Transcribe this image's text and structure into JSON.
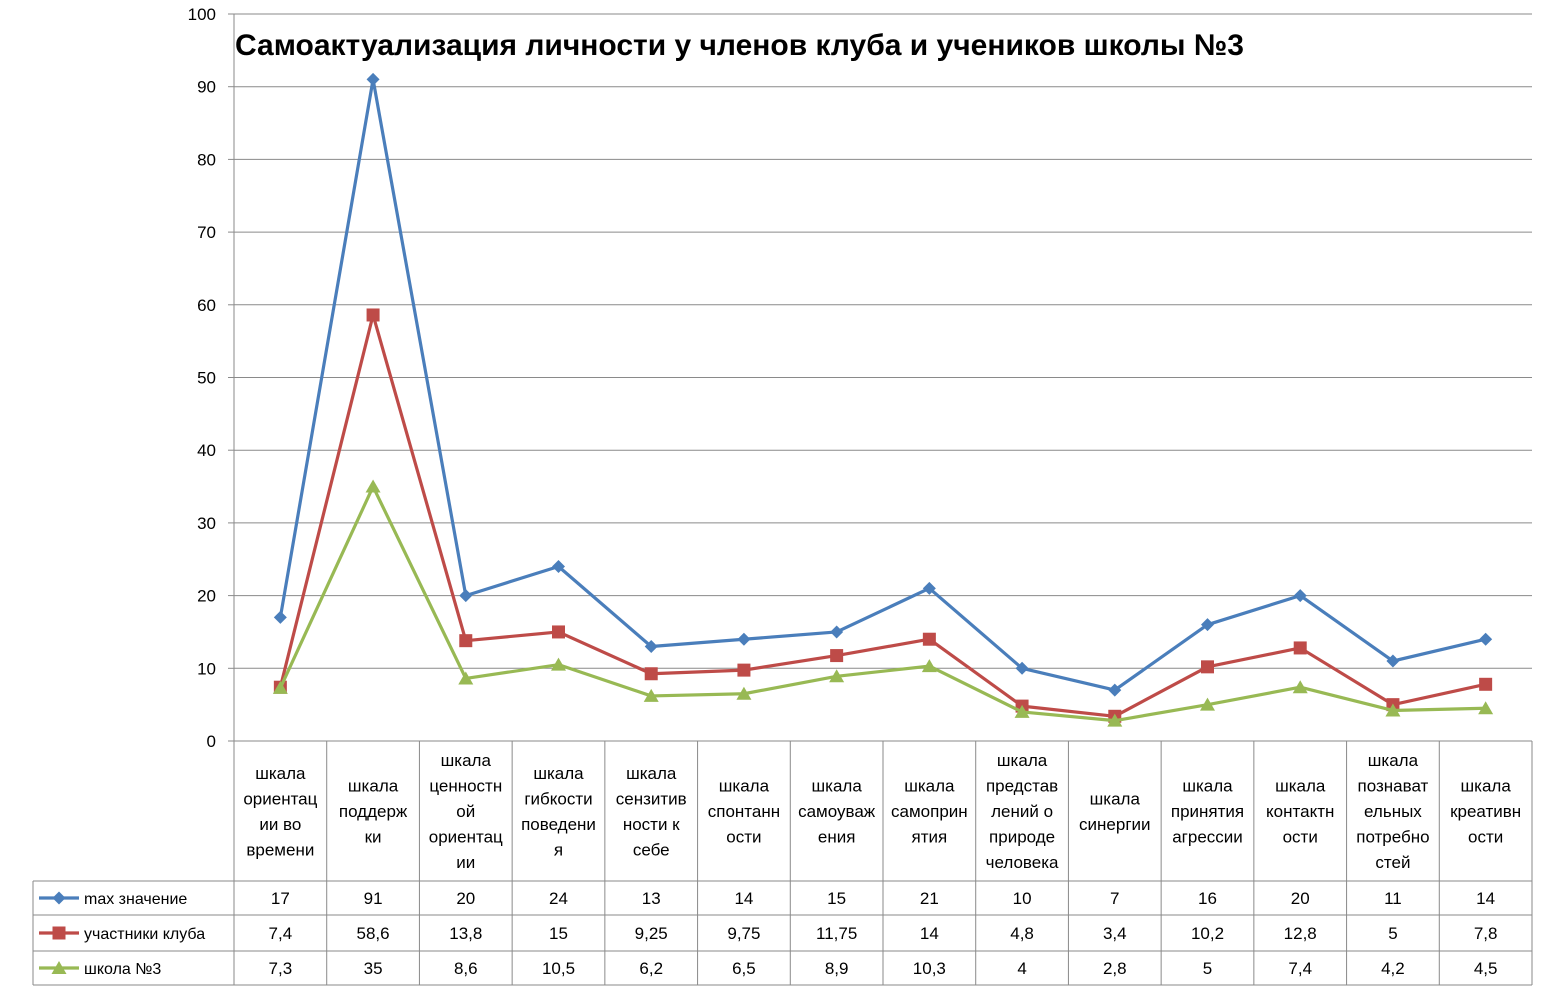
{
  "chart_data": {
    "type": "line",
    "title": "Самоактуализация личности у членов клуба и учеников школы №3",
    "ylim": [
      0,
      100
    ],
    "y_ticks": [
      0,
      10,
      20,
      30,
      40,
      50,
      60,
      70,
      80,
      90,
      100
    ],
    "grid": "horizontal",
    "legend_placement": "data-table-left",
    "categories": [
      [
        "шкала",
        "ориентац",
        "ии во",
        "времени"
      ],
      [
        "шкала",
        "поддерж",
        "ки"
      ],
      [
        "шкала",
        "ценностн",
        "ой",
        "ориентац",
        "ии"
      ],
      [
        "шкала",
        "гибкости",
        "поведени",
        "я"
      ],
      [
        "шкала",
        "сензитив",
        "ности к",
        "себе"
      ],
      [
        "шкала",
        "спонтанн",
        "ости"
      ],
      [
        "шкала",
        "самоуваж",
        "ения"
      ],
      [
        "шкала",
        "самоприн",
        "ятия"
      ],
      [
        "шкала",
        "представ",
        "лений о",
        "природе",
        "человека"
      ],
      [
        "шкала",
        "синергии"
      ],
      [
        "шкала",
        "принятия",
        "агрессии"
      ],
      [
        "шкала",
        "контактн",
        "ости"
      ],
      [
        "шкала",
        "познават",
        "ельных",
        "потребно",
        "стей"
      ],
      [
        "шкала",
        "креативн",
        "ости"
      ]
    ],
    "series": [
      {
        "name": "max значение",
        "color": "#4a7ebb",
        "marker": "diamond",
        "values": [
          17,
          91,
          20,
          24,
          13,
          14,
          15,
          21,
          10,
          7,
          16,
          20,
          11,
          14
        ],
        "labels": [
          "17",
          "91",
          "20",
          "24",
          "13",
          "14",
          "15",
          "21",
          "10",
          "7",
          "16",
          "20",
          "11",
          "14"
        ]
      },
      {
        "name": "участники клуба",
        "color": "#be4b48",
        "marker": "square",
        "values": [
          7.4,
          58.6,
          13.8,
          15,
          9.25,
          9.75,
          11.75,
          14,
          4.8,
          3.4,
          10.2,
          12.8,
          5,
          7.8
        ],
        "labels": [
          "7,4",
          "58,6",
          "13,8",
          "15",
          "9,25",
          "9,75",
          "11,75",
          "14",
          "4,8",
          "3,4",
          "10,2",
          "12,8",
          "5",
          "7,8"
        ]
      },
      {
        "name": "школа №3",
        "color": "#98b954",
        "marker": "triangle",
        "values": [
          7.3,
          35,
          8.6,
          10.5,
          6.2,
          6.5,
          8.9,
          10.3,
          4,
          2.8,
          5,
          7.4,
          4.2,
          4.5
        ],
        "labels": [
          "7,3",
          "35",
          "8,6",
          "10,5",
          "6,2",
          "6,5",
          "8,9",
          "10,3",
          "4",
          "2,8",
          "5",
          "7,4",
          "4,2",
          "4,5"
        ]
      }
    ]
  }
}
